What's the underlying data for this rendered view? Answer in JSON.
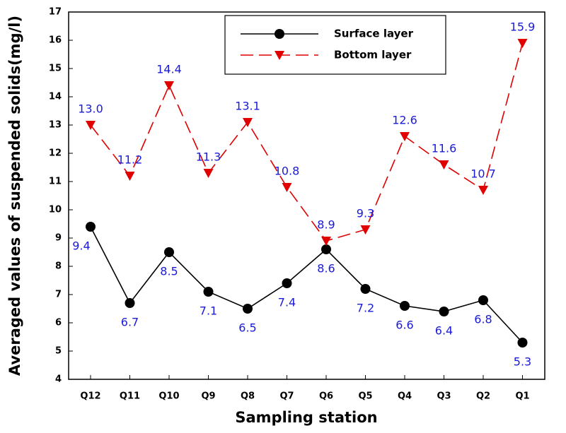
{
  "chart_data": {
    "type": "line",
    "x_label": "Sampling station",
    "y_label": "Averaged values of suspended solids(mg/l)",
    "categories": [
      "Q12",
      "Q11",
      "Q10",
      "Q9",
      "Q8",
      "Q7",
      "Q6",
      "Q5",
      "Q4",
      "Q3",
      "Q2",
      "Q1"
    ],
    "series": [
      {
        "name": "Surface layer",
        "color": "#000000",
        "marker": "circle",
        "dashed": false,
        "values": [
          9.4,
          6.7,
          8.5,
          7.1,
          6.5,
          7.4,
          8.6,
          7.2,
          6.6,
          6.4,
          6.8,
          5.3
        ],
        "value_labels": [
          "9.4",
          "6.7",
          "8.5",
          "7.1",
          "6.5",
          "7.4",
          "8.6",
          "7.2",
          "6.6",
          "6.4",
          "6.8",
          "5.3"
        ]
      },
      {
        "name": "Bottom layer",
        "color": "#e00000",
        "marker": "triangle-down",
        "dashed": true,
        "values": [
          13.0,
          11.2,
          14.4,
          11.3,
          13.1,
          10.8,
          8.9,
          9.3,
          12.6,
          11.6,
          10.7,
          15.9
        ],
        "value_labels": [
          "13.0",
          "11.2",
          "14.4",
          "11.3",
          "13.1",
          "10.8",
          "8.9",
          "9.3",
          "12.6",
          "11.6",
          "10.7",
          "15.9"
        ]
      }
    ],
    "label_color": "#1a1ad8",
    "ylim": [
      4,
      17
    ],
    "yticks": [
      4,
      5,
      6,
      7,
      8,
      9,
      10,
      11,
      12,
      13,
      14,
      15,
      16,
      17
    ]
  }
}
